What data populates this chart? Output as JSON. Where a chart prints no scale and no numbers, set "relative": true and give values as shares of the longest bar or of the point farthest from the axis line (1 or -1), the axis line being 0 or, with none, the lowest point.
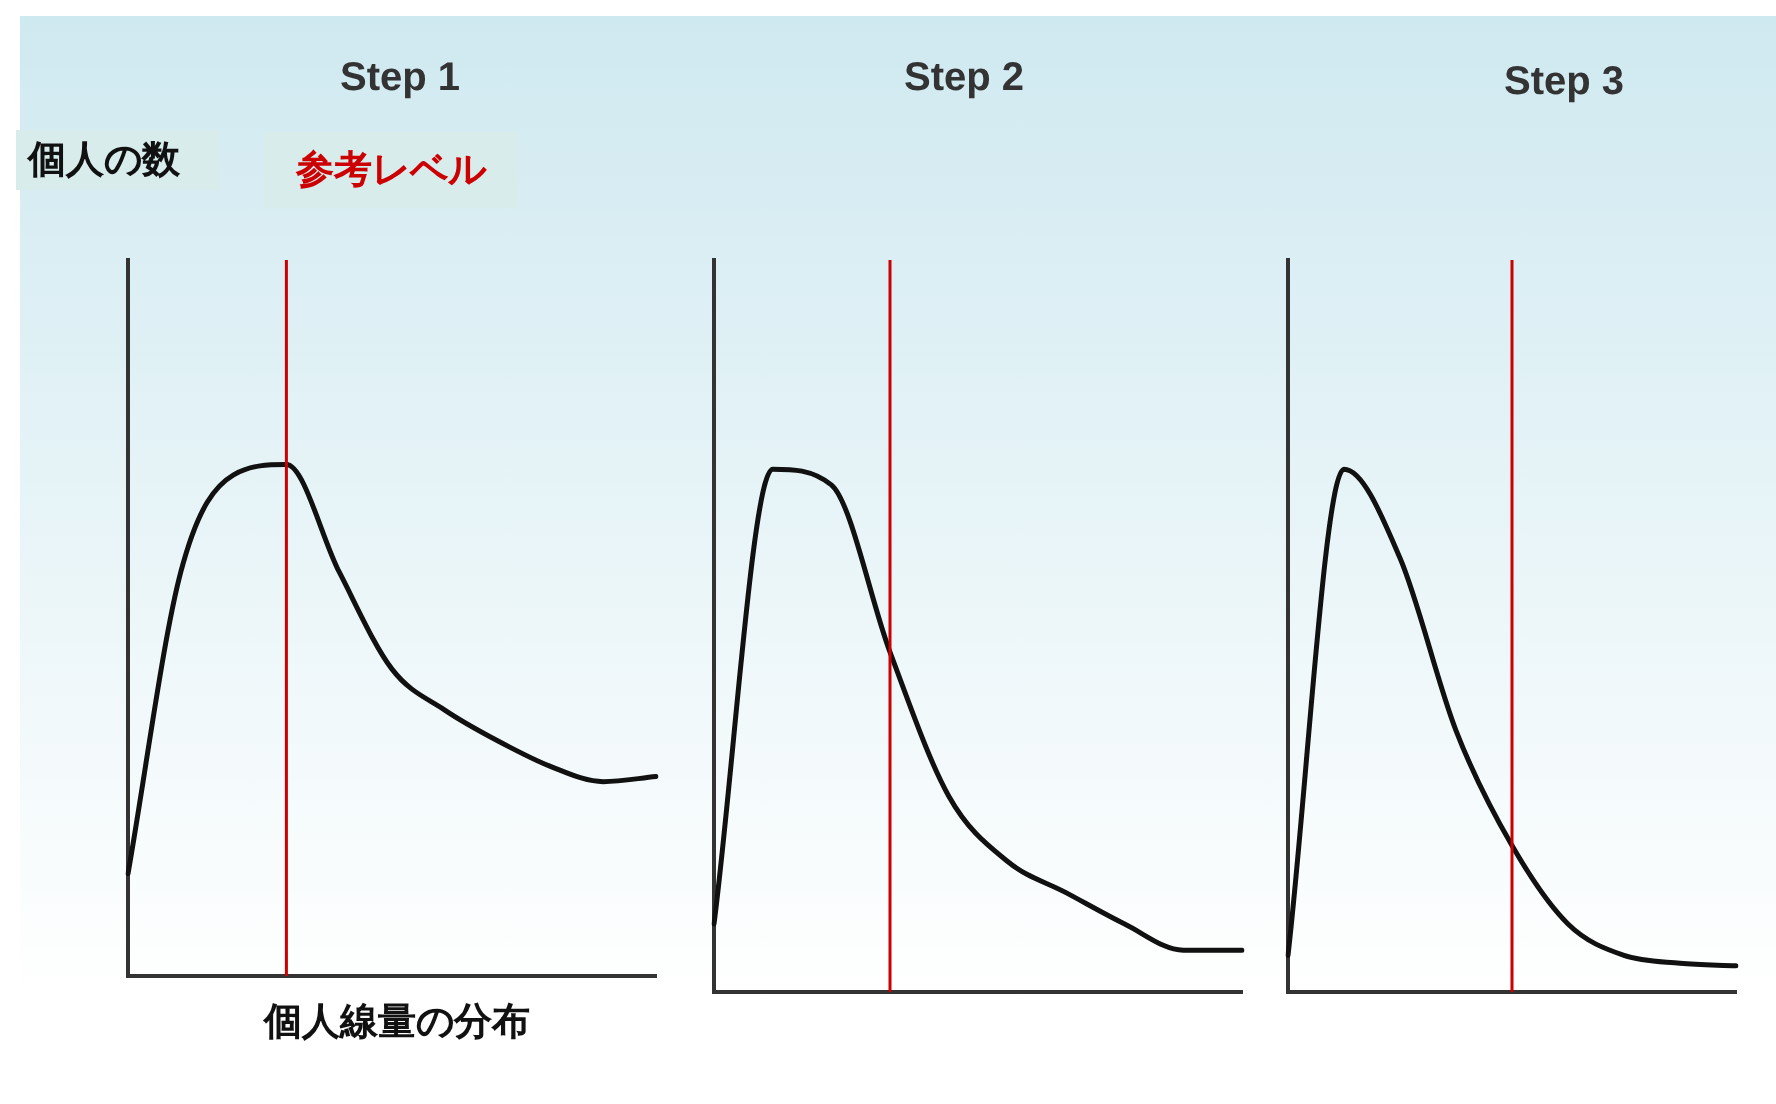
{
  "chart_data": [
    {
      "type": "line",
      "title": "Step 1",
      "ylabel": "個人の数",
      "xlabel": "個人線量の分布",
      "relative": true,
      "grid": false,
      "legend": false,
      "tick_labels": false,
      "marker": "none",
      "line_style": "solid",
      "categories": [
        null,
        null,
        null,
        null,
        null,
        null,
        null,
        null,
        null,
        null,
        null
      ],
      "series": [
        {
          "color": "#111111",
          "values": [
            0.2,
            0.79,
            0.98,
            1,
            0.79,
            0.6,
            0.52,
            0.46,
            0.41,
            0.38,
            0.39
          ]
        }
      ],
      "annotations": [
        "参考レベル"
      ]
    },
    {
      "type": "line",
      "title": "Step 2",
      "relative": true,
      "grid": false,
      "legend": false,
      "tick_labels": false,
      "marker": "none",
      "line_style": "solid",
      "categories": [
        null,
        null,
        null,
        null,
        null,
        null,
        null,
        null,
        null,
        null
      ],
      "series": [
        {
          "color": "#111111",
          "values": [
            0.13,
            1,
            0.97,
            0.65,
            0.375,
            0.25,
            0.19,
            0.13,
            0.08,
            0.08
          ]
        }
      ]
    },
    {
      "type": "line",
      "title": "Step 3",
      "relative": true,
      "grid": false,
      "legend": false,
      "tick_labels": false,
      "marker": "none",
      "line_style": "solid",
      "categories": [
        null,
        null,
        null,
        null,
        null,
        null,
        null,
        null,
        null
      ],
      "series": [
        {
          "color": "#111111",
          "values": [
            0.07,
            1,
            0.83,
            0.5,
            0.28,
            0.13,
            0.07,
            0.055,
            0.05
          ]
        }
      ]
    }
  ]
}
